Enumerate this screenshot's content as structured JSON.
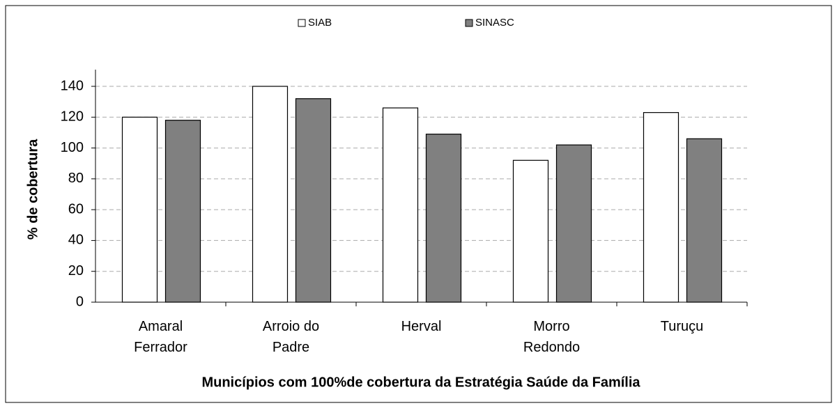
{
  "chart_data": {
    "type": "bar",
    "x_label": "Municípios com 100%de cobertura da Estratégia Saúde da Família",
    "y_label": "% de cobertura",
    "categories": [
      "Amaral Ferrador",
      "Arroio do Padre",
      "Herval",
      "Morro Redondo",
      "Turuçu"
    ],
    "series": [
      {
        "name": "SIAB",
        "color": "#ffffff",
        "values": [
          120,
          140,
          126,
          92,
          123
        ]
      },
      {
        "name": "SINASC",
        "color": "#808080",
        "values": [
          118,
          132,
          109,
          102,
          106
        ]
      }
    ],
    "ylim": [
      0,
      150
    ],
    "yticks": [
      0,
      20,
      40,
      60,
      80,
      100,
      120,
      140
    ],
    "grid": true,
    "legend": "top"
  }
}
